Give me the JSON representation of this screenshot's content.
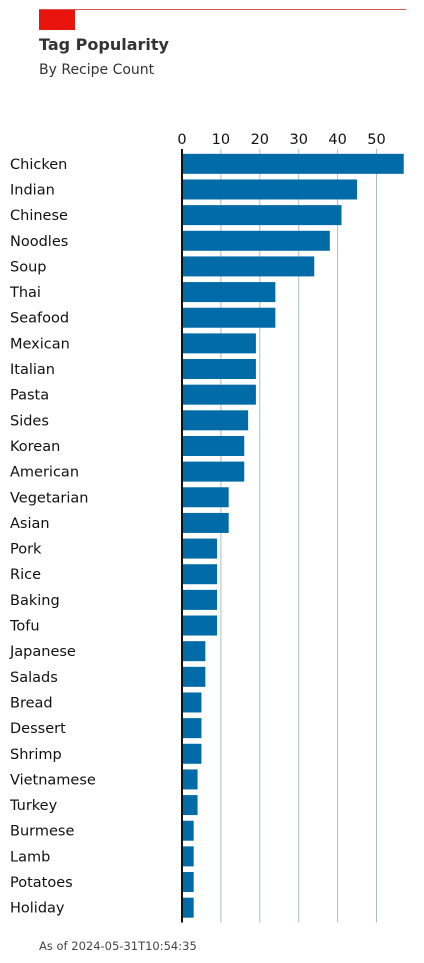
{
  "header": {
    "title": "Tag Popularity",
    "subtitle": "By Recipe Count"
  },
  "footer": {
    "timestamp": "As of 2024-05-31T10:54:35"
  },
  "colors": {
    "bar": "#006ba6",
    "brand": "#e8140d",
    "grid": "#a9bfc0"
  },
  "chart_data": {
    "type": "bar",
    "orientation": "horizontal",
    "title": "Tag Popularity",
    "subtitle": "By Recipe Count",
    "xlabel": "",
    "ylabel": "",
    "xlim": [
      0,
      57.5
    ],
    "xticks": [
      0,
      10,
      20,
      30,
      40,
      50
    ],
    "x_axis_position": "top",
    "grid": "vertical",
    "categories": [
      "Chicken",
      "Indian",
      "Chinese",
      "Noodles",
      "Soup",
      "Thai",
      "Seafood",
      "Mexican",
      "Italian",
      "Pasta",
      "Sides",
      "Korean",
      "American",
      "Vegetarian",
      "Asian",
      "Pork",
      "Rice",
      "Baking",
      "Tofu",
      "Japanese",
      "Salads",
      "Bread",
      "Dessert",
      "Shrimp",
      "Vietnamese",
      "Turkey",
      "Burmese",
      "Lamb",
      "Potatoes",
      "Holiday"
    ],
    "values": [
      57,
      45,
      41,
      38,
      34,
      24,
      24,
      19,
      19,
      19,
      17,
      16,
      16,
      12,
      12,
      9,
      9,
      9,
      9,
      6,
      6,
      5,
      5,
      5,
      4,
      4,
      3,
      3,
      3,
      3
    ]
  }
}
